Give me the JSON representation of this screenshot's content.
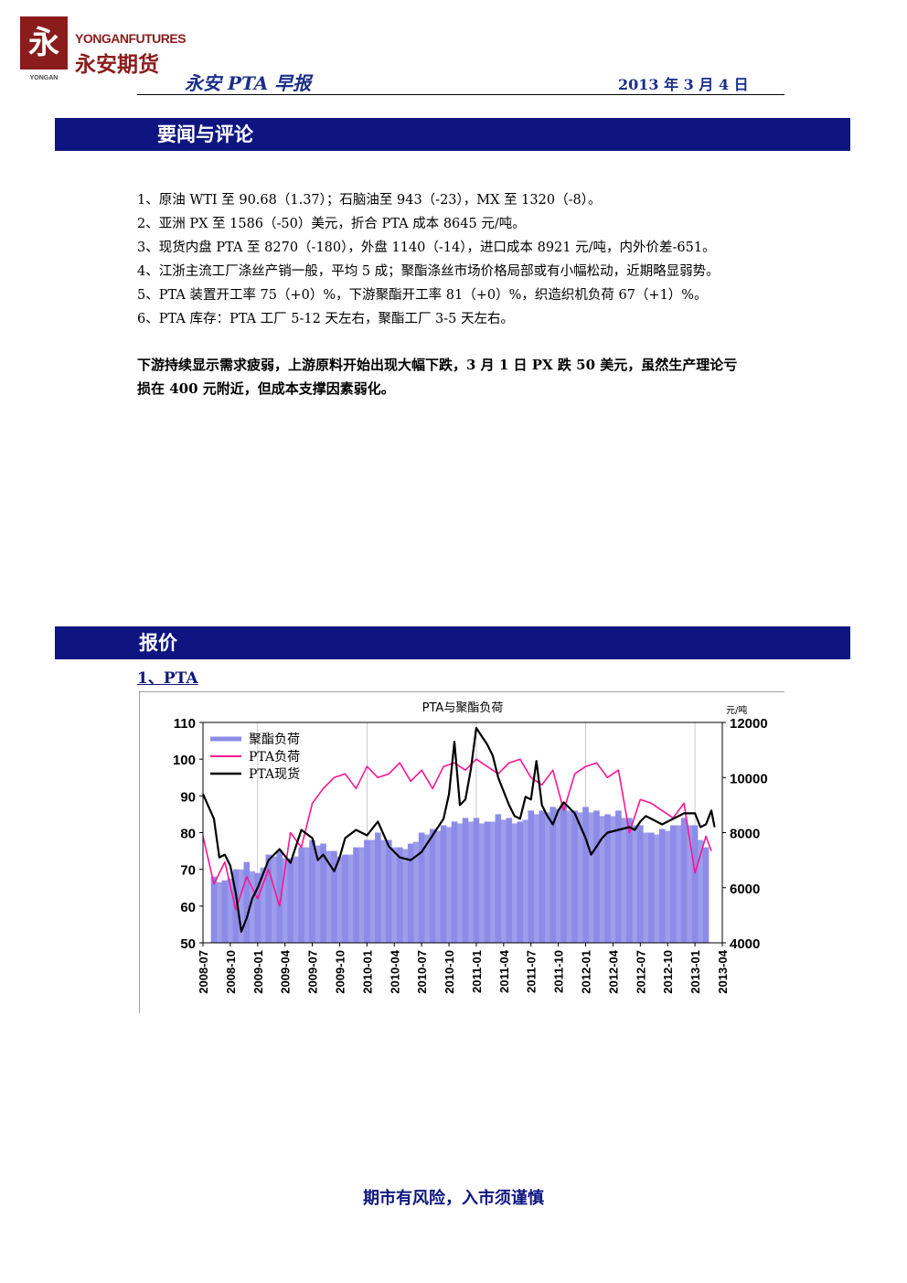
{
  "header": {
    "logo_mark": "永",
    "logo_mark_sub": "YONGAN",
    "logo_en": "YONGANFUTURES",
    "logo_cn": "永安期货",
    "title": "永安 PTA 早报",
    "date": "2013 年 3 月 4 日"
  },
  "section_news": {
    "title": "要闻与评论",
    "items": [
      "1、原油 WTI 至 90.68（1.37）；石脑油至 943（-23），MX 至 1320（-8）。",
      "2、亚洲 PX 至 1586（-50）美元，折合 PTA 成本 8645 元/吨。",
      "3、现货内盘 PTA 至 8270（-180），外盘 1140（-14），进口成本 8921 元/吨，内外价差-651。",
      "4、江浙主流工厂涤丝产销一般，平均 5 成；聚酯涤丝市场价格局部或有小幅松动，近期略显弱势。",
      "5、PTA 装置开工率 75（+0）%，下游聚酯开工率 81（+0）%，织造织机负荷 67（+1）%。",
      "6、PTA 库存：PTA 工厂 5-12 天左右，聚酯工厂 3-5 天左右。"
    ],
    "summary_line1": "下游持续显示需求疲弱，上游原料开始出现大幅下跌，3 月 1 日 PX 跌 50 美元，虽然生产理论亏",
    "summary_line2": "损在 400 元附近，但成本支撑因素弱化。"
  },
  "section_price": {
    "title": "报价",
    "subsection": "1、PTA"
  },
  "chart_data": {
    "type": "line",
    "title": "PTA与聚酯负荷",
    "right_unit": "元/吨",
    "left_axis": {
      "ylim": [
        50,
        110
      ],
      "ticks": [
        50,
        60,
        70,
        80,
        90,
        100,
        110
      ]
    },
    "right_axis": {
      "ylim": [
        4000,
        12000
      ],
      "ticks": [
        4000,
        6000,
        8000,
        10000,
        12000
      ]
    },
    "x_ticks": [
      "2008-07",
      "2008-10",
      "2009-01",
      "2009-04",
      "2009-07",
      "2009-10",
      "2010-01",
      "2010-04",
      "2010-07",
      "2010-10",
      "2011-01",
      "2011-04",
      "2011-07",
      "2011-10",
      "2012-01",
      "2012-04",
      "2012-07",
      "2012-10",
      "2013-01",
      "2013-04"
    ],
    "grid": "vertical",
    "legend_position": "top-left",
    "colors": {
      "bars": "#8c8ce8",
      "pta_load": "#ff1493",
      "pta_spot": "#000000"
    },
    "series": [
      {
        "name": "聚酯负荷",
        "kind": "bar",
        "axis": "left",
        "x": [
          2008.6,
          2008.7,
          2008.8,
          2008.9,
          2009.0,
          2009.1,
          2009.2,
          2009.3,
          2009.4,
          2009.5,
          2009.6,
          2009.7,
          2009.8,
          2009.9,
          2010.0,
          2010.1,
          2010.2,
          2010.3,
          2010.4,
          2010.5,
          2010.6,
          2010.7,
          2010.8,
          2010.9,
          2011.0,
          2011.1,
          2011.2,
          2011.3,
          2011.4,
          2011.5,
          2011.6,
          2011.7,
          2011.8,
          2011.9,
          2012.0,
          2012.1,
          2012.2,
          2012.3,
          2012.4,
          2012.5,
          2012.6,
          2012.7,
          2012.8,
          2012.9,
          2013.0,
          2013.1
        ],
        "values": [
          68,
          67,
          70,
          72,
          69,
          74,
          75,
          73,
          76,
          78,
          77,
          75,
          74,
          76,
          78,
          80,
          78,
          76,
          77,
          80,
          81,
          82,
          83,
          84,
          84,
          83,
          85,
          84,
          83,
          86,
          86,
          87,
          88,
          86,
          87,
          86,
          85,
          86,
          84,
          82,
          80,
          81,
          82,
          84,
          82,
          76
        ]
      },
      {
        "name": "PTA负荷",
        "kind": "line",
        "axis": "left",
        "x": [
          2008.5,
          2008.6,
          2008.7,
          2008.8,
          2008.9,
          2009.0,
          2009.1,
          2009.2,
          2009.3,
          2009.4,
          2009.5,
          2009.6,
          2009.7,
          2009.8,
          2009.9,
          2010.0,
          2010.1,
          2010.2,
          2010.3,
          2010.4,
          2010.5,
          2010.6,
          2010.7,
          2010.8,
          2010.9,
          2011.0,
          2011.1,
          2011.2,
          2011.3,
          2011.4,
          2011.5,
          2011.6,
          2011.7,
          2011.8,
          2011.9,
          2012.0,
          2012.1,
          2012.2,
          2012.3,
          2012.4,
          2012.5,
          2012.6,
          2012.7,
          2012.8,
          2012.9,
          2013.0,
          2013.1,
          2013.15
        ],
        "values": [
          79,
          66,
          72,
          59,
          68,
          62,
          70,
          60,
          80,
          76,
          88,
          92,
          95,
          96,
          92,
          98,
          95,
          96,
          99,
          94,
          97,
          92,
          98,
          99,
          97,
          100,
          98,
          96,
          99,
          100,
          95,
          93,
          97,
          86,
          96,
          98,
          99,
          95,
          97,
          80,
          89,
          88,
          86,
          84,
          88,
          69,
          79,
          75
        ]
      },
      {
        "name": "PTA现货",
        "kind": "line",
        "axis": "right",
        "x": [
          2008.5,
          2008.6,
          2008.65,
          2008.7,
          2008.75,
          2008.8,
          2008.85,
          2008.9,
          2008.95,
          2009.0,
          2009.1,
          2009.2,
          2009.3,
          2009.4,
          2009.5,
          2009.55,
          2009.6,
          2009.7,
          2009.75,
          2009.8,
          2009.9,
          2010.0,
          2010.1,
          2010.2,
          2010.3,
          2010.4,
          2010.5,
          2010.6,
          2010.7,
          2010.75,
          2010.8,
          2010.85,
          2010.9,
          2010.95,
          2011.0,
          2011.05,
          2011.1,
          2011.15,
          2011.2,
          2011.25,
          2011.3,
          2011.35,
          2011.4,
          2011.45,
          2011.5,
          2011.55,
          2011.6,
          2011.65,
          2011.7,
          2011.75,
          2011.8,
          2011.85,
          2011.9,
          2012.0,
          2012.05,
          2012.1,
          2012.15,
          2012.2,
          2012.3,
          2012.4,
          2012.45,
          2012.5,
          2012.55,
          2012.6,
          2012.7,
          2012.8,
          2012.9,
          2013.0,
          2013.05,
          2013.1,
          2013.15,
          2013.18
        ],
        "values": [
          9400,
          8500,
          7100,
          7200,
          6800,
          5800,
          4400,
          4900,
          5600,
          6000,
          7000,
          7400,
          6900,
          8100,
          7800,
          7000,
          7200,
          6600,
          7100,
          7800,
          8100,
          7900,
          8400,
          7500,
          7100,
          7000,
          7300,
          7900,
          8500,
          9400,
          11300,
          9000,
          9200,
          10300,
          11800,
          11500,
          11200,
          10800,
          10000,
          9500,
          9000,
          8600,
          8500,
          9300,
          9200,
          10600,
          9000,
          8600,
          8300,
          8800,
          9100,
          8900,
          8700,
          7800,
          7200,
          7500,
          7800,
          8000,
          8100,
          8200,
          8100,
          8400,
          8600,
          8500,
          8300,
          8500,
          8700,
          8700,
          8200,
          8300,
          8800,
          8200
        ]
      }
    ]
  },
  "footer": "期市有风险，入市须谨慎"
}
